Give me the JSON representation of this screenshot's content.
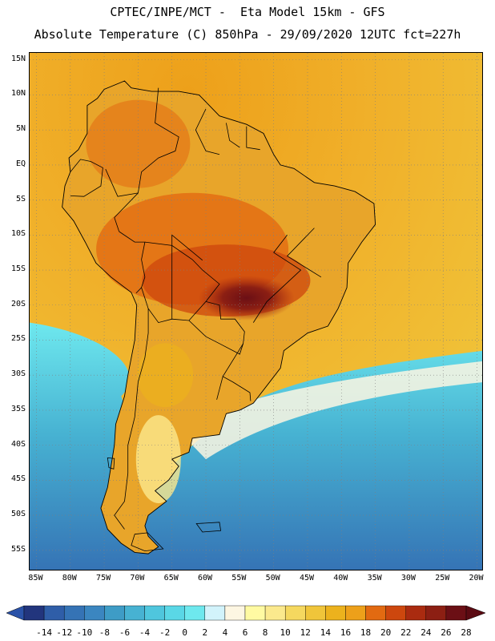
{
  "title_line1": "CPTEC/INPE/MCT -  Eta Model 15km - GFS",
  "title_line2": "Absolute Temperature (C) 850hPa - 29/09/2020 12UTC fct=227h",
  "map": {
    "lon_range": [
      -86,
      -19
    ],
    "lat_range": [
      -58,
      16
    ],
    "lat_ticks": [
      {
        "lat": 15,
        "label": "15N"
      },
      {
        "lat": 10,
        "label": "10N"
      },
      {
        "lat": 5,
        "label": "5N"
      },
      {
        "lat": 0,
        "label": "EQ"
      },
      {
        "lat": -5,
        "label": "5S"
      },
      {
        "lat": -10,
        "label": "10S"
      },
      {
        "lat": -15,
        "label": "15S"
      },
      {
        "lat": -20,
        "label": "20S"
      },
      {
        "lat": -25,
        "label": "25S"
      },
      {
        "lat": -30,
        "label": "30S"
      },
      {
        "lat": -35,
        "label": "35S"
      },
      {
        "lat": -40,
        "label": "40S"
      },
      {
        "lat": -45,
        "label": "45S"
      },
      {
        "lat": -50,
        "label": "50S"
      },
      {
        "lat": -55,
        "label": "55S"
      }
    ],
    "lon_ticks": [
      {
        "lon": -85,
        "label": "85W"
      },
      {
        "lon": -80,
        "label": "80W"
      },
      {
        "lon": -75,
        "label": "75W"
      },
      {
        "lon": -70,
        "label": "70W"
      },
      {
        "lon": -65,
        "label": "65W"
      },
      {
        "lon": -60,
        "label": "60W"
      },
      {
        "lon": -55,
        "label": "55W"
      },
      {
        "lon": -50,
        "label": "50W"
      },
      {
        "lon": -45,
        "label": "45W"
      },
      {
        "lon": -40,
        "label": "40W"
      },
      {
        "lon": -35,
        "label": "35W"
      },
      {
        "lon": -30,
        "label": "30W"
      },
      {
        "lon": -25,
        "label": "25W"
      },
      {
        "lon": -20,
        "label": "20W"
      }
    ],
    "coastline": [
      [
        -77.5,
        8.5
      ],
      [
        -76,
        9.5
      ],
      [
        -75,
        10.8
      ],
      [
        -72,
        12
      ],
      [
        -71,
        11
      ],
      [
        -68,
        10.5
      ],
      [
        -64,
        10.5
      ],
      [
        -61,
        10
      ],
      [
        -58,
        7
      ],
      [
        -54,
        5.8
      ],
      [
        -51.5,
        4.5
      ],
      [
        -50,
        1.5
      ],
      [
        -49,
        0
      ],
      [
        -47,
        -0.5
      ],
      [
        -44,
        -2.5
      ],
      [
        -41,
        -3
      ],
      [
        -38,
        -3.8
      ],
      [
        -35.2,
        -5.5
      ],
      [
        -35,
        -8.5
      ],
      [
        -37,
        -11
      ],
      [
        -39,
        -14
      ],
      [
        -39.2,
        -17.5
      ],
      [
        -40.5,
        -20.5
      ],
      [
        -42,
        -23
      ],
      [
        -45,
        -24
      ],
      [
        -48.5,
        -26.5
      ],
      [
        -49,
        -29
      ],
      [
        -51,
        -31.5
      ],
      [
        -53,
        -34
      ],
      [
        -55,
        -35
      ],
      [
        -57,
        -35.5
      ],
      [
        -57.5,
        -37
      ],
      [
        -58,
        -38.5
      ],
      [
        -62,
        -39
      ],
      [
        -62.5,
        -41
      ],
      [
        -65,
        -42
      ],
      [
        -64,
        -43
      ],
      [
        -65.5,
        -45
      ],
      [
        -67.5,
        -46.5
      ],
      [
        -65.8,
        -48
      ],
      [
        -68.5,
        -50
      ],
      [
        -69,
        -51.5
      ],
      [
        -68.5,
        -53
      ],
      [
        -67,
        -54.5
      ],
      [
        -68.5,
        -55.5
      ],
      [
        -70.5,
        -55.3
      ],
      [
        -72.5,
        -54
      ],
      [
        -74.5,
        -52
      ],
      [
        -75.5,
        -49
      ],
      [
        -74.5,
        -46
      ],
      [
        -74,
        -43
      ],
      [
        -73.5,
        -40
      ],
      [
        -73.3,
        -37
      ],
      [
        -72,
        -33
      ],
      [
        -71.5,
        -30
      ],
      [
        -70.5,
        -25
      ],
      [
        -70.2,
        -20
      ],
      [
        -71,
        -18.2
      ],
      [
        -74,
        -16
      ],
      [
        -76.2,
        -14
      ],
      [
        -77.8,
        -11
      ],
      [
        -79.5,
        -8
      ],
      [
        -81.2,
        -6
      ],
      [
        -80.8,
        -3
      ],
      [
        -80,
        -1
      ],
      [
        -80.2,
        1
      ],
      [
        -78.8,
        2.2
      ],
      [
        -77.5,
        4.5
      ],
      [
        -77.5,
        8.5
      ]
    ],
    "borders": [
      [
        [
          -67,
          11
        ],
        [
          -67.5,
          6
        ],
        [
          -64,
          4
        ],
        [
          -64.5,
          2
        ],
        [
          -67,
          1
        ],
        [
          -69.5,
          -1
        ],
        [
          -70,
          -4
        ],
        [
          -73.5,
          -7.5
        ],
        [
          -72.8,
          -9.5
        ]
      ],
      [
        [
          -60,
          8
        ],
        [
          -61.5,
          5
        ],
        [
          -60,
          2
        ],
        [
          -58,
          1.5
        ]
      ],
      [
        [
          -57,
          6
        ],
        [
          -56.5,
          3.5
        ],
        [
          -55,
          2.5
        ]
      ],
      [
        [
          -54,
          5.5
        ],
        [
          -54,
          2.5
        ],
        [
          -52,
          2.2
        ]
      ],
      [
        [
          -80,
          -1
        ],
        [
          -78.5,
          0.8
        ],
        [
          -77,
          0.5
        ],
        [
          -75.2,
          -0.4
        ],
        [
          -75.5,
          -3
        ],
        [
          -78,
          -4.5
        ],
        [
          -80,
          -4.4
        ]
      ],
      [
        [
          -70,
          -4
        ],
        [
          -73,
          -4.5
        ],
        [
          -74.8,
          -0.6
        ]
      ],
      [
        [
          -72.8,
          -9.5
        ],
        [
          -70.5,
          -11
        ],
        [
          -69,
          -11
        ],
        [
          -69.5,
          -13.5
        ],
        [
          -69,
          -16
        ],
        [
          -69.5,
          -17.5
        ],
        [
          -70.3,
          -18.3
        ]
      ],
      [
        [
          -69.5,
          -17.5
        ],
        [
          -68.5,
          -20.5
        ],
        [
          -67,
          -22.5
        ],
        [
          -65,
          -22
        ],
        [
          -62.5,
          -22.2
        ],
        [
          -60,
          -19.5
        ],
        [
          -58,
          -17
        ],
        [
          -60.5,
          -15
        ],
        [
          -62,
          -13.5
        ],
        [
          -65,
          -11.5
        ],
        [
          -69,
          -11
        ]
      ],
      [
        [
          -68.5,
          -20.5
        ],
        [
          -68.5,
          -24
        ],
        [
          -69,
          -27.5
        ],
        [
          -70,
          -31
        ],
        [
          -70.5,
          -36
        ],
        [
          -71.5,
          -40
        ],
        [
          -71.5,
          -44
        ],
        [
          -72,
          -48
        ],
        [
          -73.5,
          -50
        ],
        [
          -72,
          -52
        ]
      ],
      [
        [
          -62.5,
          -22.2
        ],
        [
          -60,
          -24.5
        ],
        [
          -58,
          -25.5
        ],
        [
          -55,
          -27
        ],
        [
          -54.5,
          -25.5
        ],
        [
          -54.3,
          -23.8
        ],
        [
          -55.7,
          -22
        ],
        [
          -57.8,
          -22
        ],
        [
          -58,
          -20
        ],
        [
          -60,
          -19.5
        ]
      ],
      [
        [
          -54.5,
          -25.5
        ],
        [
          -57.5,
          -30.2
        ],
        [
          -56,
          -31
        ],
        [
          -53.5,
          -32.5
        ],
        [
          -53.4,
          -33.7
        ]
      ],
      [
        [
          -57.5,
          -30.2
        ],
        [
          -58.4,
          -33.5
        ]
      ],
      [
        [
          -65,
          -22
        ],
        [
          -65,
          -10
        ],
        [
          -60.5,
          -13.6
        ]
      ],
      [
        [
          -48,
          -10
        ],
        [
          -50,
          -12.5
        ],
        [
          -46,
          -15
        ],
        [
          -51,
          -19.5
        ],
        [
          -53,
          -22.5
        ]
      ],
      [
        [
          -44,
          -9
        ],
        [
          -48,
          -13
        ],
        [
          -43,
          -16
        ]
      ]
    ],
    "islands": [
      [
        [
          -70.5,
          -52.7
        ],
        [
          -68.6,
          -52.5
        ],
        [
          -66.3,
          -54.8
        ],
        [
          -69,
          -55.1
        ],
        [
          -71,
          -54.3
        ]
      ],
      [
        [
          -61.4,
          -51.2
        ],
        [
          -58,
          -51
        ],
        [
          -57.8,
          -52.2
        ],
        [
          -60.5,
          -52.4
        ]
      ],
      [
        [
          -74.5,
          -41.8
        ],
        [
          -73.5,
          -41.9
        ],
        [
          -73.6,
          -43.4
        ],
        [
          -74.3,
          -43.2
        ]
      ]
    ]
  },
  "colorbar": {
    "labels": [
      "-14",
      "-12",
      "-10",
      "-8",
      "-6",
      "-4",
      "-2",
      "0",
      "2",
      "4",
      "6",
      "8",
      "10",
      "12",
      "14",
      "16",
      "18",
      "20",
      "22",
      "24",
      "26",
      "28"
    ],
    "colors": [
      "#2a52a8",
      "#22357d",
      "#2f5ea8",
      "#3573b5",
      "#3b86c0",
      "#3e9cc6",
      "#47b2d2",
      "#4fc6dd",
      "#5ad7e6",
      "#6ee8ee",
      "#d2f3fb",
      "#fdf6e2",
      "#fffaa2",
      "#fbe98d",
      "#f5d85f",
      "#f0c53a",
      "#ecb21d",
      "#eda01a",
      "#e26a11",
      "#cd470e",
      "#aa2b10",
      "#8c1f13",
      "#6b0f15",
      "#5b0a12"
    ]
  }
}
